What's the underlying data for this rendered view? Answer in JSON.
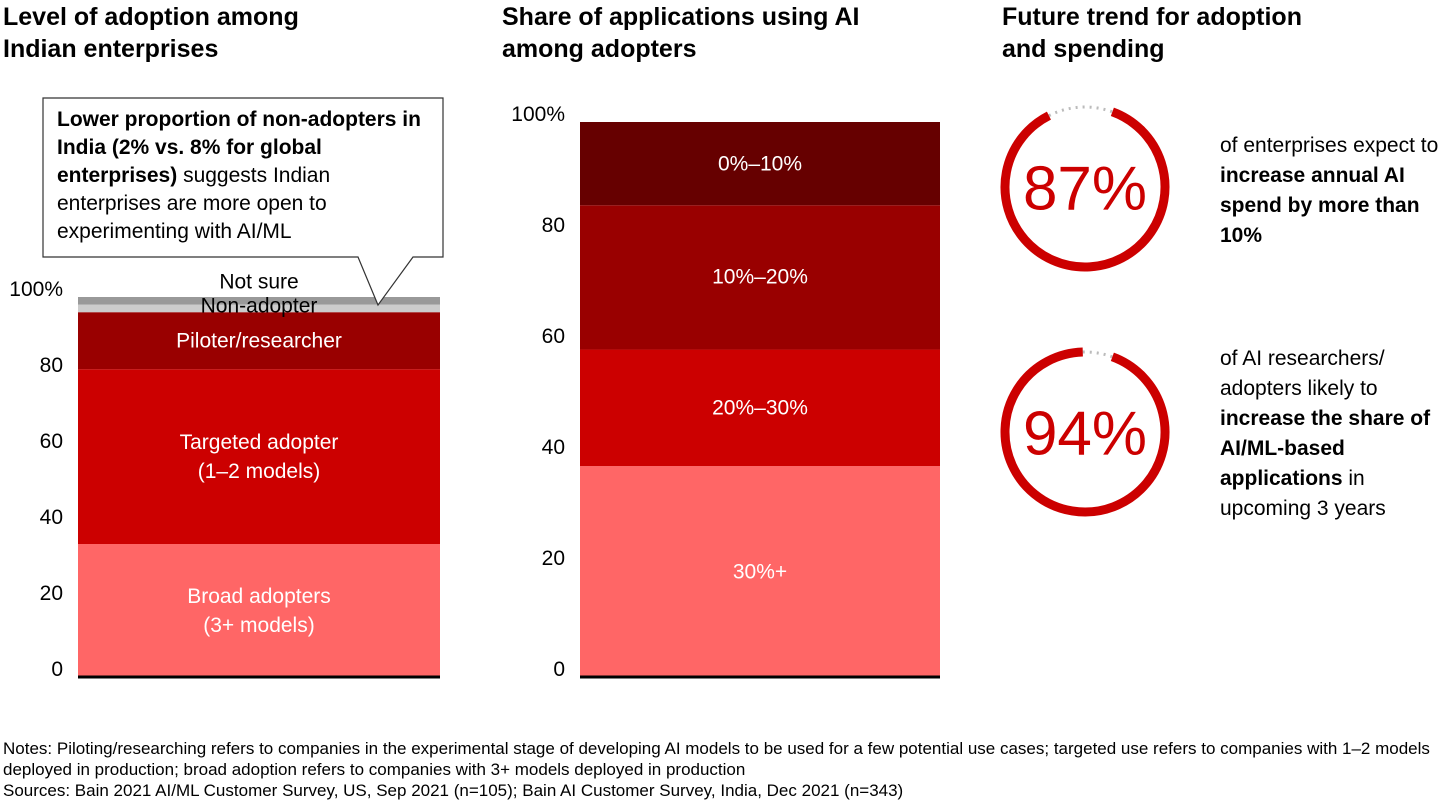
{
  "chart_data": [
    {
      "type": "stacked-bar",
      "title": "Level of adoption among Indian enterprises",
      "annotation": [
        "Lower proportion of non-adopters in India (2% vs. 8% for global enterprises)",
        "suggests Indian enterprises are more open to experimenting with AI/ML"
      ],
      "ylim": [
        0,
        100
      ],
      "yticks": [
        0,
        20,
        40,
        60,
        80,
        {
          "value": 100,
          "label": "100%"
        }
      ],
      "series": [
        {
          "name": "Broad adopters\n(3+ models)",
          "color": "#ff6666",
          "values": [
            35
          ]
        },
        {
          "name": "Targeted adopter\n(1–2 models)",
          "color": "#cc0000",
          "values": [
            46
          ]
        },
        {
          "name": "Piloter/researcher",
          "color": "#990000",
          "values": [
            15
          ]
        },
        {
          "name": "Non-adopter",
          "color": "#cccccc",
          "values": [
            2
          ]
        },
        {
          "name": "Not sure",
          "color": "#999999",
          "values": [
            2
          ]
        }
      ]
    },
    {
      "type": "stacked-bar",
      "title": "Share of applications using AI among adopters",
      "ylim": [
        0,
        100
      ],
      "yticks": [
        0,
        20,
        40,
        60,
        80,
        {
          "value": 100,
          "label": "100%"
        }
      ],
      "series": [
        {
          "name": "30%+",
          "color": "#ff6666",
          "values": [
            38
          ]
        },
        {
          "name": "20%–30%",
          "color": "#cc0000",
          "values": [
            21
          ]
        },
        {
          "name": "10%–20%",
          "color": "#990000",
          "values": [
            26
          ]
        },
        {
          "name": "0%–10%",
          "color": "#660000",
          "values": [
            15
          ]
        }
      ]
    },
    {
      "type": "stat-rings",
      "title": "Future trend for adoption and spending",
      "color": "#cc0000",
      "values": [
        87,
        94
      ],
      "value_labels": [
        "87%",
        "94%"
      ],
      "texts": [
        [
          "of enterprises expect to",
          "increase annual AI spend by more than 10%"
        ],
        [
          "of AI researchers/ adopters likely to",
          "increase the share of AI/ML-based applications",
          "in upcoming 3 years"
        ]
      ]
    }
  ],
  "notes": "Notes: Piloting/researching refers to companies in the experimental stage of developing AI models to be used for a few potential use cases; targeted use refers to companies with 1–2 models deployed in production; broad adoption refers to companies with 3+ models deployed in production",
  "sources": "Sources: Bain 2021 AI/ML Customer Survey, US, Sep 2021 (n=105); Bain AI Customer Survey, India, Dec 2021 (n=343)"
}
